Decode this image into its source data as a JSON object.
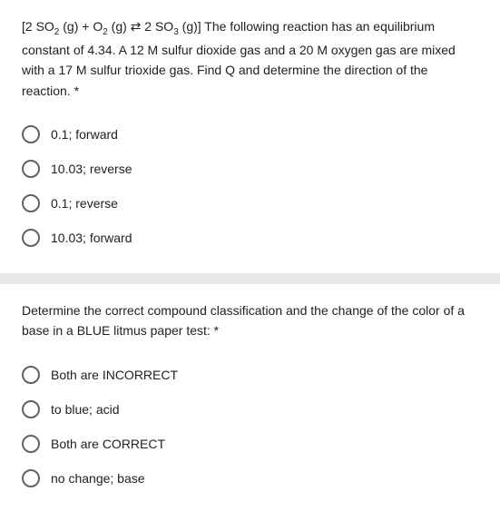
{
  "question1": {
    "text_parts": {
      "prefix": "[2 SO",
      "sub1": "2",
      "part2": " (g) + O",
      "sub2": "2",
      "part3": " (g) ⇄ 2 SO",
      "sub3": "3",
      "part4": " (g)] The following reaction has an equilibrium constant of 4.34. A 12 M sulfur dioxide gas and a 20 M oxygen gas are mixed with a 17 M sulfur trioxide gas. Find Q and determine the direction of the reaction. *"
    },
    "options": [
      "0.1; forward",
      "10.03; reverse",
      "0.1; reverse",
      "10.03; forward"
    ]
  },
  "question2": {
    "text": "Determine the correct compound classification and the change of the color of a base in a BLUE litmus paper test: *",
    "options": [
      "Both are INCORRECT",
      "to blue; acid",
      "Both are CORRECT",
      "no change; base"
    ]
  },
  "colors": {
    "text": "#202124",
    "radio_border": "#5f6368",
    "divider": "#e8e8e8",
    "background": "#ffffff"
  }
}
